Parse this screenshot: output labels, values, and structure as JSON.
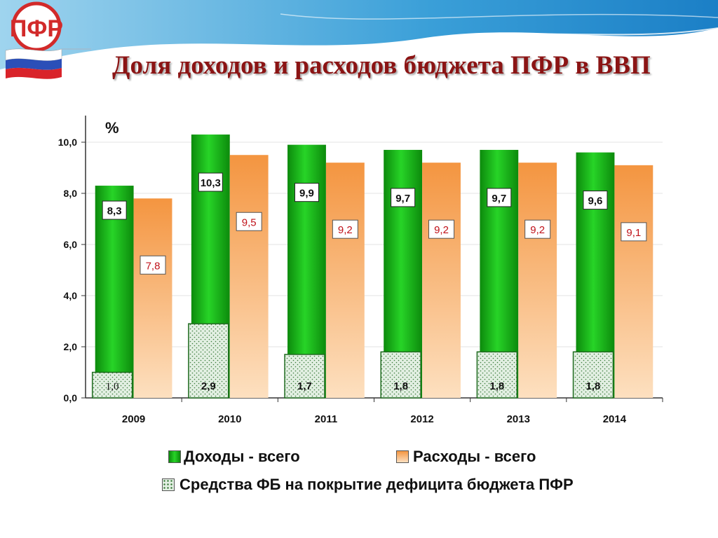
{
  "slide": {
    "title": "Доля доходов и расходов бюджета ПФР в ВВП"
  },
  "logo": {
    "text": "ПФР",
    "icon": "pfr-logo-with-russian-flag"
  },
  "colors": {
    "income": "#1fbf1f",
    "income_dark": "#0c8a0c",
    "expense": "#f7a860",
    "expense_light": "#fde0c0",
    "fund": "#cfe8cf",
    "expense_label": "#c0121a",
    "title": "#8b1414"
  },
  "legend": {
    "income_label": "Доходы - всего",
    "expense_label": "Расходы - всего",
    "fund_label": "Средства ФБ на покрытие дефицита бюджета ПФР"
  },
  "chart_data": {
    "type": "bar",
    "ylabel": "%",
    "ylim": [
      0,
      10
    ],
    "yticks": [
      "0,0",
      "2,0",
      "4,0",
      "6,0",
      "8,0",
      "10,0"
    ],
    "grid": true,
    "legend_position": "bottom",
    "categories": [
      "2009",
      "2010",
      "2011",
      "2012",
      "2013",
      "2014"
    ],
    "series": [
      {
        "name": "Доходы - всего",
        "values": [
          8.3,
          10.3,
          9.9,
          9.7,
          9.7,
          9.6
        ],
        "labels": [
          "8,3",
          "10,3",
          "9,9",
          "9,7",
          "9,7",
          "9,6"
        ]
      },
      {
        "name": "Расходы - всего",
        "values": [
          7.8,
          9.5,
          9.2,
          9.2,
          9.2,
          9.1
        ],
        "labels": [
          "7,8",
          "9,5",
          "9,2",
          "9,2",
          "9,2",
          "9,1"
        ]
      },
      {
        "name": "Средства ФБ на покрытие дефицита бюджета ПФР",
        "values": [
          1.0,
          2.9,
          1.7,
          1.8,
          1.8,
          1.8
        ],
        "labels": [
          "1,0",
          "2,9",
          "1,7",
          "1,8",
          "1,8",
          "1,8"
        ]
      }
    ]
  }
}
